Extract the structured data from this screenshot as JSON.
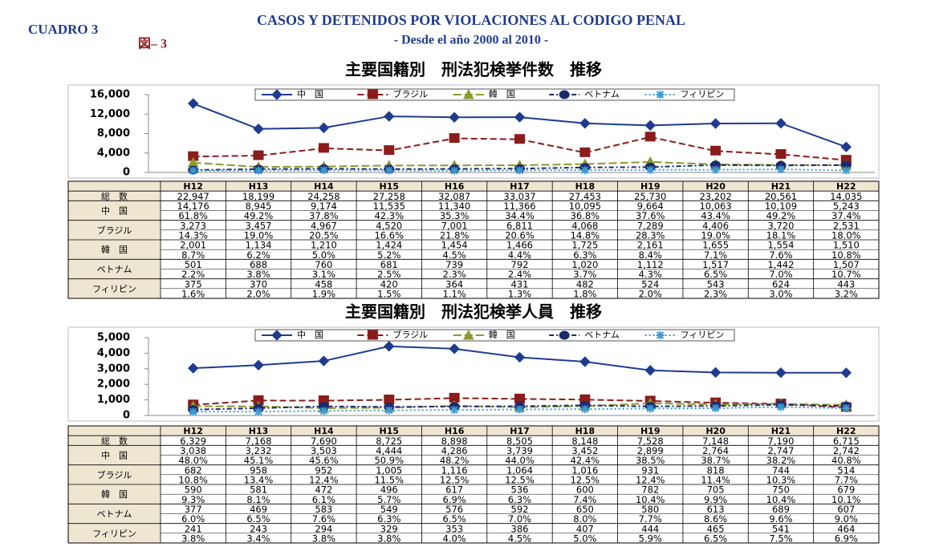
{
  "header": {
    "label": "CUADRO 3",
    "figure": "図– 3",
    "title": "CASOS Y DETENIDOS POR VIOLACIONES AL CODIGO PENAL",
    "subtitle": "- Desde el año 2000 al 2010 -"
  },
  "chart_data": [
    {
      "type": "line",
      "title": "主要国籍別　刑法犯検挙件数　推移",
      "ylim": [
        0,
        16000
      ],
      "yticks": [
        0,
        {
          "value": 4000,
          "label": "4,000"
        },
        {
          "value": 8000,
          "label": "8,000"
        },
        {
          "value": 12000,
          "label": "12,000"
        },
        {
          "value": 16000,
          "label": "16,000"
        }
      ],
      "grid": false,
      "legend": "top",
      "series": [
        {
          "name": "中　国",
          "color": "#1f3b8f",
          "marker": "diamond",
          "dash": "none",
          "values": [
            14176,
            8945,
            9174,
            11535,
            11340,
            11366,
            10095,
            9664,
            10063,
            10109,
            5243
          ]
        },
        {
          "name": "ブラジル",
          "color": "#8b1c1c",
          "marker": "square",
          "dash": "8 4",
          "values": [
            3273,
            3457,
            4967,
            4520,
            7001,
            6811,
            4068,
            7289,
            4406,
            3720,
            2531
          ]
        },
        {
          "name": "韓　国",
          "color": "#8c9a2e",
          "marker": "triangle",
          "dash": "10 4",
          "values": [
            2001,
            1134,
            1210,
            1424,
            1454,
            1466,
            1725,
            2161,
            1655,
            1554,
            1510
          ]
        },
        {
          "name": "ベトナム",
          "color": "#1c2a6e",
          "marker": "circle",
          "dash": "6 3 2 3",
          "values": [
            501,
            688,
            760,
            681,
            739,
            792,
            1020,
            1112,
            1517,
            1442,
            1507
          ]
        },
        {
          "name": "フィリピン",
          "color": "#3b9ad0",
          "marker": "star",
          "dash": "2 3",
          "values": [
            375,
            370,
            458,
            420,
            364,
            431,
            482,
            524,
            543,
            624,
            443
          ]
        }
      ]
    },
    {
      "type": "line",
      "title": "主要国籍別　刑法犯検挙人員　推移",
      "ylim": [
        0,
        5000
      ],
      "yticks": [
        0,
        {
          "value": 1000,
          "label": "1,000"
        },
        {
          "value": 2000,
          "label": "2,000"
        },
        {
          "value": 3000,
          "label": "3,000"
        },
        {
          "value": 4000,
          "label": "4,000"
        },
        {
          "value": 5000,
          "label": "5,000"
        }
      ],
      "grid": false,
      "legend": "top",
      "series": [
        {
          "name": "中　国",
          "color": "#1f3b8f",
          "marker": "diamond",
          "dash": "none",
          "values": [
            3038,
            3232,
            3503,
            4444,
            4286,
            3739,
            3452,
            2899,
            2764,
            2747,
            2742
          ]
        },
        {
          "name": "ブラジル",
          "color": "#8b1c1c",
          "marker": "square",
          "dash": "8 4",
          "values": [
            682,
            958,
            952,
            1005,
            1116,
            1064,
            1016,
            931,
            818,
            744,
            514
          ]
        },
        {
          "name": "韓　国",
          "color": "#8c9a2e",
          "marker": "triangle",
          "dash": "10 4",
          "values": [
            590,
            581,
            472,
            496,
            617,
            536,
            600,
            782,
            705,
            750,
            679
          ]
        },
        {
          "name": "ベトナム",
          "color": "#1c2a6e",
          "marker": "circle",
          "dash": "6 3 2 3",
          "values": [
            377,
            469,
            583,
            549,
            576,
            592,
            650,
            580,
            613,
            689,
            607
          ]
        },
        {
          "name": "フィリピン",
          "color": "#3b9ad0",
          "marker": "star",
          "dash": "2 3",
          "values": [
            241,
            243,
            294,
            329,
            353,
            386,
            407,
            444,
            465,
            541,
            464
          ]
        }
      ]
    }
  ],
  "tables": [
    {
      "columns": [
        "H12",
        "H13",
        "H14",
        "H15",
        "H16",
        "H17",
        "H18",
        "H19",
        "H20",
        "H21",
        "H22"
      ],
      "rows": [
        {
          "label": "総　数",
          "values": [
            "22,947",
            "18,199",
            "24,258",
            "27,258",
            "32,087",
            "33,037",
            "27,453",
            "25,730",
            "23,202",
            "20,561",
            "14,035"
          ]
        },
        {
          "label": "中　国",
          "values": [
            "14,176",
            "8,945",
            "9,174",
            "11,535",
            "11,340",
            "11,366",
            "10,095",
            "9,664",
            "10,063",
            "10,109",
            "5,243"
          ],
          "shares": [
            "61.8%",
            "49.2%",
            "37.8%",
            "42.3%",
            "35.3%",
            "34.4%",
            "36.8%",
            "37.6%",
            "43.4%",
            "49.2%",
            "37.4%"
          ]
        },
        {
          "label": "ブラジル",
          "values": [
            "3,273",
            "3,457",
            "4,967",
            "4,520",
            "7,001",
            "6,811",
            "4,068",
            "7,289",
            "4,406",
            "3,720",
            "2,531"
          ],
          "shares": [
            "14.3%",
            "19.0%",
            "20.5%",
            "16.6%",
            "21.8%",
            "20.6%",
            "14.8%",
            "28.3%",
            "19.0%",
            "18.1%",
            "18.0%"
          ]
        },
        {
          "label": "韓　国",
          "values": [
            "2,001",
            "1,134",
            "1,210",
            "1,424",
            "1,454",
            "1,466",
            "1,725",
            "2,161",
            "1,655",
            "1,554",
            "1,510"
          ],
          "shares": [
            "8.7%",
            "6.2%",
            "5.0%",
            "5.2%",
            "4.5%",
            "4.4%",
            "6.3%",
            "8.4%",
            "7.1%",
            "7.6%",
            "10.8%"
          ]
        },
        {
          "label": "ベトナム",
          "values": [
            "501",
            "688",
            "760",
            "681",
            "739",
            "792",
            "1,020",
            "1,112",
            "1,517",
            "1,442",
            "1,507"
          ],
          "shares": [
            "2.2%",
            "3.8%",
            "3.1%",
            "2.5%",
            "2.3%",
            "2.4%",
            "3.7%",
            "4.3%",
            "6.5%",
            "7.0%",
            "10.7%"
          ]
        },
        {
          "label": "フィリピン",
          "values": [
            "375",
            "370",
            "458",
            "420",
            "364",
            "431",
            "482",
            "524",
            "543",
            "624",
            "443"
          ],
          "shares": [
            "1.6%",
            "2.0%",
            "1.9%",
            "1.5%",
            "1.1%",
            "1.3%",
            "1.8%",
            "2.0%",
            "2.3%",
            "3.0%",
            "3.2%"
          ]
        }
      ]
    },
    {
      "columns": [
        "H12",
        "H13",
        "H14",
        "H15",
        "H16",
        "H17",
        "H18",
        "H19",
        "H20",
        "H21",
        "H22"
      ],
      "rows": [
        {
          "label": "総　数",
          "values": [
            "6,329",
            "7,168",
            "7,690",
            "8,725",
            "8,898",
            "8,505",
            "8,148",
            "7,528",
            "7,148",
            "7,190",
            "6,715"
          ]
        },
        {
          "label": "中　国",
          "values": [
            "3,038",
            "3,232",
            "3,503",
            "4,444",
            "4,286",
            "3,739",
            "3,452",
            "2,899",
            "2,764",
            "2,747",
            "2,742"
          ],
          "shares": [
            "48.0%",
            "45.1%",
            "45.6%",
            "50.9%",
            "48.2%",
            "44.0%",
            "42.4%",
            "38.5%",
            "38.7%",
            "38.2%",
            "40.8%"
          ]
        },
        {
          "label": "ブラジル",
          "values": [
            "682",
            "958",
            "952",
            "1,005",
            "1,116",
            "1,064",
            "1,016",
            "931",
            "818",
            "744",
            "514"
          ],
          "shares": [
            "10.8%",
            "13.4%",
            "12.4%",
            "11.5%",
            "12.5%",
            "12.5%",
            "12.5%",
            "12.4%",
            "11.4%",
            "10.3%",
            "7.7%"
          ]
        },
        {
          "label": "韓　国",
          "values": [
            "590",
            "581",
            "472",
            "496",
            "617",
            "536",
            "600",
            "782",
            "705",
            "750",
            "679"
          ],
          "shares": [
            "9.3%",
            "8.1%",
            "6.1%",
            "5.7%",
            "6.9%",
            "6.3%",
            "7.4%",
            "10.4%",
            "9.9%",
            "10.4%",
            "10.1%"
          ]
        },
        {
          "label": "ベトナム",
          "values": [
            "377",
            "469",
            "583",
            "549",
            "576",
            "592",
            "650",
            "580",
            "613",
            "689",
            "607"
          ],
          "shares": [
            "6.0%",
            "6.5%",
            "7.6%",
            "6.3%",
            "6.5%",
            "7.0%",
            "8.0%",
            "7.7%",
            "8.6%",
            "9.6%",
            "9.0%"
          ]
        },
        {
          "label": "フィリピン",
          "values": [
            "241",
            "243",
            "294",
            "329",
            "353",
            "386",
            "407",
            "444",
            "465",
            "541",
            "464"
          ],
          "shares": [
            "3.8%",
            "3.4%",
            "3.8%",
            "3.8%",
            "4.0%",
            "4.5%",
            "5.0%",
            "5.9%",
            "6.5%",
            "7.5%",
            "6.9%"
          ]
        }
      ]
    }
  ]
}
